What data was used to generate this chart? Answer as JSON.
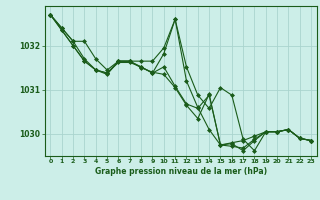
{
  "title": "Graphe pression niveau de la mer (hPa)",
  "background_color": "#cceee8",
  "grid_color": "#aad4ce",
  "line_color": "#1a5c1a",
  "marker_color": "#1a5c1a",
  "xlim": [
    -0.5,
    23.5
  ],
  "ylim": [
    1029.5,
    1032.9
  ],
  "yticks": [
    1030,
    1031,
    1032
  ],
  "xticks": [
    0,
    1,
    2,
    3,
    4,
    5,
    6,
    7,
    8,
    9,
    10,
    11,
    12,
    13,
    14,
    15,
    16,
    17,
    18,
    19,
    20,
    21,
    22,
    23
  ],
  "series": [
    [
      1032.7,
      1032.4,
      1032.1,
      1032.1,
      1031.7,
      1031.45,
      1031.65,
      1031.65,
      1031.65,
      1031.65,
      1031.95,
      1032.6,
      1031.2,
      1030.6,
      1030.1,
      1029.75,
      1029.8,
      1029.85,
      1029.95,
      1030.05,
      1030.05,
      1030.1,
      1029.9,
      1029.85
    ],
    [
      1032.7,
      1032.4,
      1032.1,
      1031.7,
      1031.45,
      1031.35,
      1031.65,
      1031.65,
      1031.5,
      1031.4,
      1031.35,
      1031.05,
      1030.65,
      1030.35,
      1030.9,
      1029.75,
      1029.78,
      1029.62,
      1029.85,
      1030.05,
      1030.05,
      1030.1,
      1029.9,
      1029.85
    ],
    [
      1032.7,
      1032.35,
      1032.0,
      1031.65,
      1031.45,
      1031.38,
      1031.65,
      1031.65,
      1031.52,
      1031.38,
      1031.82,
      1032.6,
      1031.52,
      1030.88,
      1030.58,
      1031.05,
      1030.88,
      1029.88,
      1029.62,
      1030.05,
      1030.05,
      1030.1,
      1029.9,
      1029.85
    ],
    [
      1032.7,
      1032.35,
      1032.0,
      1031.65,
      1031.45,
      1031.38,
      1031.62,
      1031.62,
      1031.52,
      1031.38,
      1031.52,
      1031.08,
      1030.68,
      1030.58,
      1030.88,
      1029.75,
      1029.72,
      1029.68,
      1029.88,
      1030.05,
      1030.05,
      1030.1,
      1029.9,
      1029.85
    ]
  ]
}
